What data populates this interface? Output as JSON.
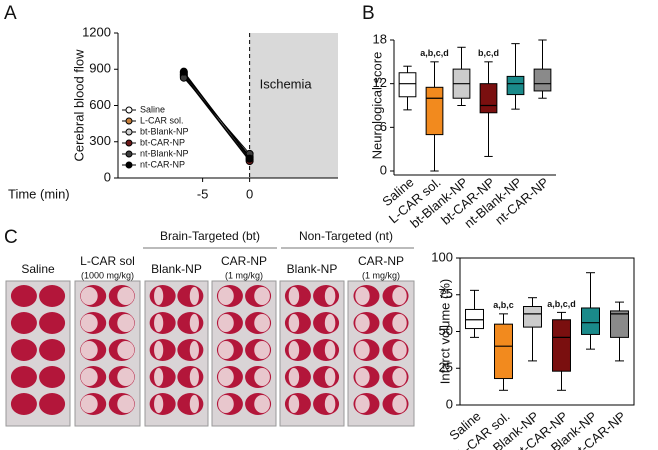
{
  "panel_labels": [
    "A",
    "B",
    "C"
  ],
  "photo_labels": [
    {
      "text": "Saline"
    },
    {
      "text": "L-CAR sol",
      "dose": "(1000 mg/kg)"
    },
    {
      "text": "Blank-NP"
    },
    {
      "text": "CAR-NP",
      "dose": "(1 mg/kg)"
    },
    {
      "text": "Blank-NP"
    },
    {
      "text": "CAR-NP",
      "dose": "(1 mg/kg)"
    }
  ],
  "photo_groups": [
    "Brain-Targeted (bt)",
    "Non-Targeted (nt)"
  ],
  "chart_data": [
    {
      "type": "line",
      "xlabel": "Time (min)",
      "ylabel": "Cerebral blood flow",
      "x": [
        -7,
        0
      ],
      "xlim": [
        -14,
        9.4
      ],
      "xticks": [
        -5,
        0
      ],
      "ylim": [
        0,
        1200
      ],
      "yticks": [
        0,
        300,
        600,
        900,
        1200
      ],
      "shade": {
        "text": "Ischemia",
        "x_start": 0
      },
      "series": [
        {
          "name": "Saline",
          "color": "#ffffff",
          "values": [
            870,
            170
          ]
        },
        {
          "name": "L-CAR sol.",
          "color": "#c8803c",
          "values": [
            850,
            150
          ]
        },
        {
          "name": "bt-Blank-NP",
          "color": "#cfcfcf",
          "values": [
            860,
            180
          ]
        },
        {
          "name": "bt-CAR-NP",
          "color": "#6e1a1a",
          "values": [
            840,
            140
          ]
        },
        {
          "name": "nt-Blank-NP",
          "color": "#3c3c3c",
          "values": [
            830,
            200
          ]
        },
        {
          "name": "nt-CAR-NP",
          "color": "#000000",
          "values": [
            880,
            160
          ]
        }
      ]
    },
    {
      "type": "box",
      "ylabel": "Neurological score",
      "categories": [
        "Saline",
        "L-CAR sol.",
        "bt-Blank-NP",
        "bt-CAR-NP",
        "nt-Blank-NP",
        "nt-CAR-NP"
      ],
      "colors": [
        "#ffffff",
        "#f28a1e",
        "#cccccc",
        "#7a0f0f",
        "#1a8a8a",
        "#8a8a8a"
      ],
      "min": [
        8.4,
        0,
        9,
        2,
        8.5,
        10
      ],
      "q1": [
        10.2,
        5,
        10,
        8,
        10.5,
        11
      ],
      "median": [
        12,
        10,
        12,
        9,
        12,
        12
      ],
      "q3": [
        13.5,
        11.5,
        14,
        12,
        13,
        14
      ],
      "max": [
        14.4,
        15,
        17,
        15,
        17.5,
        18
      ],
      "ylim": [
        0,
        18
      ],
      "yticks": [
        0,
        6,
        12,
        18
      ],
      "annotations": [
        {
          "text": "a,b,c,d",
          "category": "L-CAR sol."
        },
        {
          "text": "b,c,d",
          "category": "bt-CAR-NP"
        }
      ]
    },
    {
      "type": "box",
      "ylabel": "Infarct volume (%)",
      "frame": true,
      "categories": [
        "Saline",
        "L-CAR sol.",
        "bt-Blank-NP",
        "bt-CAR-NP",
        "nt-Blank-NP",
        "nt-CAR-NP"
      ],
      "colors": [
        "#ffffff",
        "#f28a1e",
        "#cccccc",
        "#7a0f0f",
        "#1a8a8a",
        "#8a8a8a"
      ],
      "min": [
        46,
        10,
        30,
        10,
        38,
        30
      ],
      "q1": [
        52,
        18,
        53,
        23,
        48,
        46
      ],
      "median": [
        58,
        40,
        62,
        46,
        56,
        62
      ],
      "q3": [
        65,
        55,
        67,
        58,
        66,
        64
      ],
      "max": [
        78,
        62,
        73,
        63,
        90,
        70
      ],
      "ylim": [
        0,
        100
      ],
      "yticks": [
        0,
        25,
        50,
        75,
        100
      ],
      "annotations": [
        {
          "text": "a,b,c",
          "category": "L-CAR sol."
        },
        {
          "text": "a,b,c,d",
          "category": "bt-CAR-NP"
        }
      ]
    }
  ]
}
